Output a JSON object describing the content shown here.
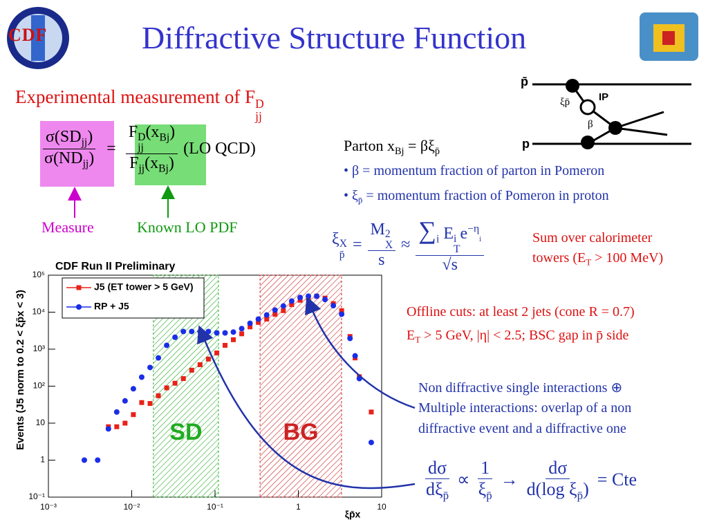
{
  "title": "Diffractive Structure Function",
  "logo": "CDF",
  "subtitle": [
    "Experimental measurement of F",
    "jj",
    "D"
  ],
  "formula1": {
    "num": [
      "σ(SD",
      "jj",
      ")"
    ],
    "den": [
      "σ(ND",
      "jj",
      ")"
    ],
    "eq": "=",
    "rnum": [
      "F",
      "jj",
      "D",
      "(x",
      "Bj",
      ")"
    ],
    "rden": [
      "F",
      "jj",
      "(x",
      "Bj",
      ")"
    ],
    "tail": "(LO QCD)",
    "measure": "Measure",
    "known": "Known LO PDF"
  },
  "diagram": {
    "pbar": "p̄",
    "pomeron": "IP",
    "xi": "ξp̄",
    "beta": "β",
    "p": "p"
  },
  "parton": [
    "Parton x",
    "Bj",
    " = βξ",
    "p̄"
  ],
  "bullet1": "• β = momentum fraction of parton in Pomeron",
  "bullet2": [
    "• ξ",
    "p̄",
    " = momentum fraction of Pomeron in proton"
  ],
  "formula2": {
    "lhs": [
      "ξ",
      "p̄",
      "X"
    ],
    "eq": "=",
    "mnum": [
      "M",
      "X",
      "2"
    ],
    "mden": "s",
    "approx": "≈",
    "snum": [
      "∑",
      "i",
      "E",
      "T",
      "i",
      "e",
      "−η",
      "i"
    ],
    "sden": "√s",
    "note": [
      "Sum over calorimeter",
      "towers (E",
      "T",
      " > 100 MeV)"
    ]
  },
  "cuts": [
    "Offline cuts: at least 2 jets (cone R = 0.7)",
    "E",
    "T",
    " > 5 GeV, |η| < 2.5; BSC gap in p̄ side"
  ],
  "nondiff": [
    "Non diffractive single interactions ⊕",
    "Multiple interactions: overlap of a non",
    "diffractive event and a diffractive one"
  ],
  "formula3": {
    "f1num": "dσ",
    "f1den": [
      "dξ",
      "p̄"
    ],
    "prop": "∝",
    "f2num": "1",
    "f2den": [
      "ξ",
      "p̄"
    ],
    "arrow": "→",
    "f3num": "dσ",
    "f3den": [
      "d(log ξ",
      "p̄",
      ")"
    ],
    "tail": "= Cte"
  },
  "chart_data": {
    "type": "scatter",
    "title": "CDF Run II Preliminary",
    "x_label": "ξp̄x",
    "y_label": "Events (J5 norm to 0.2 < ξp̄x < 3)",
    "xscale": "log",
    "yscale": "log",
    "xlim": [
      0.001,
      10
    ],
    "ylim": [
      0.1,
      100000
    ],
    "xticks": [
      {
        "value": 0.001,
        "label": "10⁻³"
      },
      {
        "value": 0.01,
        "label": "10⁻²"
      },
      {
        "value": 0.1,
        "label": "10⁻¹"
      },
      1,
      10
    ],
    "yticks": [
      {
        "value": 0.1,
        "label": "10⁻¹"
      },
      1,
      10,
      {
        "value": 100,
        "label": "10²"
      },
      {
        "value": 1000,
        "label": "10³"
      },
      {
        "value": 10000,
        "label": "10⁴"
      },
      {
        "value": 100000,
        "label": "10⁵"
      }
    ],
    "legend": "upper left",
    "x": [
      0.0027,
      0.0039,
      0.00525,
      0.00661,
      0.00832,
      0.01047,
      0.01318,
      0.0166,
      0.0209,
      0.0263,
      0.0331,
      0.0417,
      0.0525,
      0.0661,
      0.0832,
      0.105,
      0.132,
      0.166,
      0.209,
      0.263,
      0.331,
      0.417,
      0.525,
      0.661,
      0.832,
      1.05,
      1.32,
      1.66,
      2.09,
      2.63,
      3.31,
      4.17,
      4.8,
      5.4,
      7.5
    ],
    "series": [
      {
        "name": "J5 (ET tower > 5 GeV)",
        "color": "#e8221a",
        "marker": "square",
        "values": [
          null,
          null,
          8,
          8,
          10,
          17,
          36,
          34,
          55,
          90,
          120,
          160,
          270,
          380,
          540,
          790,
          1270,
          1800,
          2600,
          4000,
          5300,
          6500,
          8800,
          11000,
          16000,
          21000,
          24000,
          27000,
          24000,
          17000,
          11000,
          2200,
          580,
          180,
          20
        ]
      },
      {
        "name": "RP + J5",
        "color": "#1a2ee8",
        "marker": "circle",
        "values": [
          1,
          1,
          7,
          20,
          40,
          85,
          175,
          320,
          580,
          1270,
          2100,
          3000,
          3000,
          3000,
          3000,
          2750,
          2750,
          2900,
          3600,
          5000,
          6500,
          8400,
          11400,
          14700,
          20000,
          25000,
          27000,
          27000,
          22000,
          15000,
          8800,
          1950,
          660,
          160,
          3
        ]
      }
    ],
    "regions": [
      {
        "label": "SD",
        "x": [
          0.0182,
          0.11
        ],
        "color": "#22aa22"
      },
      {
        "label": "BG",
        "x": [
          0.347,
          3.3
        ],
        "color": "#cc2222"
      }
    ]
  }
}
